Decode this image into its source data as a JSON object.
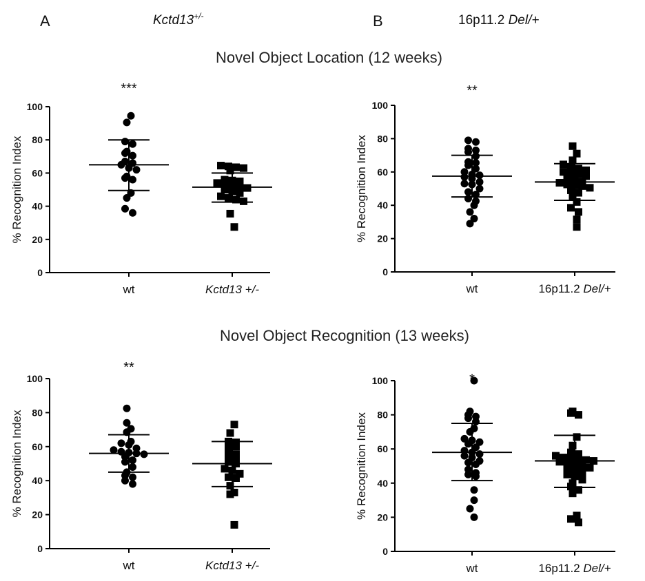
{
  "header": {
    "panel_a": {
      "letter": "A",
      "genotype_main": "Kctd13",
      "genotype_sup": "+/-"
    },
    "panel_b": {
      "letter": "B",
      "genotype_main": "16p11.2 ",
      "genotype_italic": "Del/+"
    }
  },
  "sections": {
    "top_title": "Novel Object Location (12 weeks)",
    "bottom_title": "Novel Object Recognition (13 weeks)"
  },
  "chart_data": [
    {
      "id": "nol-kctd13",
      "type": "scatter",
      "ylabel": "% Recognition Index",
      "ylim": [
        0,
        100
      ],
      "yticks": [
        0,
        20,
        40,
        60,
        80,
        100
      ],
      "significance": "***",
      "groups": [
        {
          "label": "wt",
          "label_italic": false,
          "marker": "circle",
          "mean": 65,
          "sd_low": 49.5,
          "sd_high": 80,
          "points": [
            94.5,
            90.5,
            79,
            77.5,
            73,
            72,
            70.5,
            67,
            66,
            65,
            63,
            62,
            58,
            57,
            56,
            48,
            45,
            38.5,
            36
          ]
        },
        {
          "label": "Kctd13 +/-",
          "label_italic": true,
          "marker": "square",
          "mean": 51.5,
          "sd_low": 42.5,
          "sd_high": 60,
          "points": [
            64.5,
            64,
            63.5,
            63,
            61.5,
            56,
            55.5,
            55,
            54,
            53,
            52.5,
            52,
            51,
            50,
            49,
            48,
            46,
            45,
            44,
            43,
            35.5,
            27.5
          ]
        }
      ]
    },
    {
      "id": "nol-16p",
      "type": "scatter",
      "ylabel": "% Recognition Index",
      "ylim": [
        0,
        100
      ],
      "yticks": [
        0,
        20,
        40,
        60,
        80,
        100
      ],
      "significance": "**",
      "groups": [
        {
          "label": "wt",
          "label_italic": false,
          "marker": "circle",
          "mean": 57.5,
          "sd_low": 45,
          "sd_high": 70,
          "points": [
            79,
            78,
            74,
            73,
            72,
            69.5,
            66,
            65.5,
            64,
            62,
            60,
            58.5,
            58,
            57,
            56,
            54,
            53,
            52.5,
            50,
            48,
            46.5,
            44,
            42.5,
            40,
            36,
            32,
            29
          ]
        },
        {
          "label": "16p11.2 ",
          "label_italic_suffix": "Del/+",
          "marker": "square",
          "mean": 54,
          "sd_low": 43,
          "sd_high": 65,
          "points": [
            75.5,
            71,
            67,
            64.5,
            63,
            62,
            61,
            60,
            59,
            58.5,
            57.5,
            56,
            55.5,
            54,
            53.5,
            52.5,
            52,
            51.5,
            50.5,
            49,
            47.5,
            45,
            42,
            38.5,
            36,
            31.5,
            27
          ]
        }
      ]
    },
    {
      "id": "nor-kctd13",
      "type": "scatter",
      "ylabel": "% Recognition Index",
      "ylim": [
        0,
        100
      ],
      "yticks": [
        0,
        20,
        40,
        60,
        80,
        100
      ],
      "significance": "**",
      "groups": [
        {
          "label": "wt",
          "label_italic": false,
          "marker": "circle",
          "mean": 56,
          "sd_low": 45,
          "sd_high": 67,
          "points": [
            82.5,
            74,
            70.5,
            68.5,
            63,
            62,
            61,
            59,
            58,
            57,
            56.5,
            56,
            55.5,
            54,
            52,
            51,
            48,
            45,
            43,
            42,
            40,
            38
          ]
        },
        {
          "label": "Kctd13 +/-",
          "label_italic": true,
          "marker": "square",
          "mean": 50,
          "sd_low": 36.5,
          "sd_high": 63,
          "points": [
            73,
            68,
            63,
            62.5,
            61,
            60,
            57,
            55.5,
            54,
            52.5,
            51,
            50,
            47,
            46,
            44,
            42,
            41.5,
            37,
            33,
            32,
            14
          ]
        }
      ]
    },
    {
      "id": "nor-16p",
      "type": "scatter",
      "ylabel": "% Recognition Index",
      "ylim": [
        0,
        100
      ],
      "yticks": [
        0,
        20,
        40,
        60,
        80,
        100
      ],
      "significance": "*",
      "groups": [
        {
          "label": "wt",
          "label_italic": false,
          "marker": "circle",
          "mean": 58,
          "sd_low": 41.5,
          "sd_high": 75,
          "points": [
            100,
            82,
            80,
            79,
            78,
            76,
            72,
            70,
            66,
            65,
            64,
            63,
            61,
            59,
            58,
            57,
            56,
            55,
            53,
            52,
            51,
            48,
            46,
            45,
            44,
            36,
            30,
            25,
            20
          ]
        },
        {
          "label": "16p11.2 ",
          "label_italic_suffix": "Del/+",
          "marker": "square",
          "mean": 53,
          "sd_low": 37.5,
          "sd_high": 68,
          "points": [
            82,
            81,
            80,
            67,
            62,
            58,
            57,
            56,
            55,
            54.5,
            54,
            53.5,
            53,
            52.5,
            52,
            51,
            50,
            49,
            48,
            47,
            46,
            45,
            44,
            42,
            40,
            38,
            36,
            34,
            21,
            19,
            17
          ]
        }
      ]
    }
  ]
}
